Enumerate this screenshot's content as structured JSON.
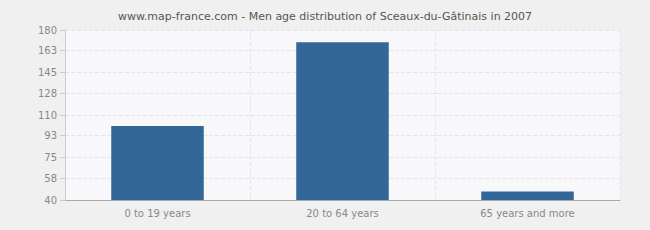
{
  "chart_data": {
    "type": "bar",
    "title": "www.map-france.com - Men age distribution of Sceaux-du-Gâtinais in 2007",
    "categories": [
      "0 to 19 years",
      "20 to 64 years",
      "65 years and more"
    ],
    "values": [
      101,
      170,
      47
    ],
    "color": "#336699",
    "ylim": [
      40,
      180
    ],
    "yticks": [
      40,
      58,
      75,
      93,
      110,
      128,
      145,
      163,
      180
    ],
    "grid": true
  }
}
